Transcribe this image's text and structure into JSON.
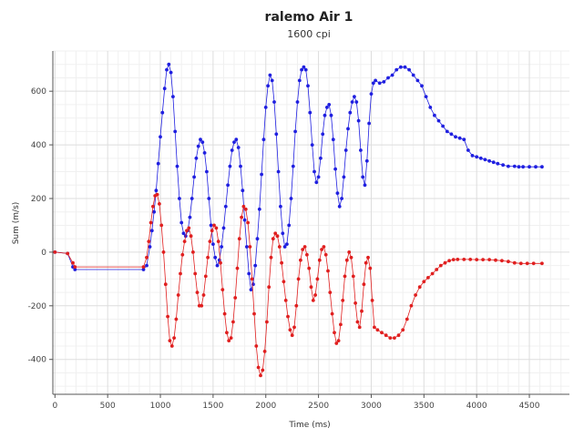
{
  "chart_data": {
    "type": "line",
    "title": "ralemo Air 1",
    "subtitle": "1600 cpi",
    "xlabel": "Time (ms)",
    "ylabel": "Sum (m/s)",
    "xlim": [
      -20,
      4880
    ],
    "ylim": [
      -530,
      750
    ],
    "xticks": [
      0,
      500,
      1000,
      1500,
      2000,
      2500,
      3000,
      3500,
      4000,
      4500
    ],
    "yticks": [
      -400,
      -200,
      0,
      200,
      400,
      600
    ],
    "grid": true,
    "legend": "none",
    "series": [
      {
        "color": "#1f1fe0",
        "points": [
          [
            0,
            0
          ],
          [
            120,
            -5
          ],
          [
            170,
            -55
          ],
          [
            190,
            -65
          ],
          [
            840,
            -65
          ],
          [
            870,
            -50
          ],
          [
            900,
            20
          ],
          [
            920,
            80
          ],
          [
            940,
            150
          ],
          [
            960,
            230
          ],
          [
            980,
            330
          ],
          [
            1000,
            430
          ],
          [
            1020,
            520
          ],
          [
            1040,
            610
          ],
          [
            1060,
            680
          ],
          [
            1080,
            700
          ],
          [
            1100,
            670
          ],
          [
            1120,
            580
          ],
          [
            1140,
            450
          ],
          [
            1160,
            320
          ],
          [
            1180,
            200
          ],
          [
            1200,
            110
          ],
          [
            1220,
            70
          ],
          [
            1240,
            60
          ],
          [
            1260,
            80
          ],
          [
            1280,
            130
          ],
          [
            1300,
            200
          ],
          [
            1320,
            280
          ],
          [
            1340,
            350
          ],
          [
            1360,
            395
          ],
          [
            1380,
            420
          ],
          [
            1400,
            410
          ],
          [
            1420,
            370
          ],
          [
            1440,
            300
          ],
          [
            1460,
            200
          ],
          [
            1480,
            100
          ],
          [
            1500,
            30
          ],
          [
            1520,
            -20
          ],
          [
            1540,
            -50
          ],
          [
            1560,
            -30
          ],
          [
            1580,
            20
          ],
          [
            1600,
            90
          ],
          [
            1620,
            170
          ],
          [
            1640,
            250
          ],
          [
            1660,
            320
          ],
          [
            1680,
            380
          ],
          [
            1700,
            410
          ],
          [
            1720,
            420
          ],
          [
            1740,
            390
          ],
          [
            1760,
            320
          ],
          [
            1780,
            230
          ],
          [
            1800,
            120
          ],
          [
            1820,
            20
          ],
          [
            1840,
            -80
          ],
          [
            1860,
            -140
          ],
          [
            1880,
            -120
          ],
          [
            1900,
            -50
          ],
          [
            1920,
            50
          ],
          [
            1940,
            160
          ],
          [
            1960,
            290
          ],
          [
            1980,
            420
          ],
          [
            2000,
            540
          ],
          [
            2020,
            620
          ],
          [
            2040,
            660
          ],
          [
            2060,
            640
          ],
          [
            2080,
            560
          ],
          [
            2100,
            440
          ],
          [
            2120,
            300
          ],
          [
            2140,
            170
          ],
          [
            2160,
            70
          ],
          [
            2180,
            20
          ],
          [
            2200,
            30
          ],
          [
            2220,
            100
          ],
          [
            2240,
            200
          ],
          [
            2260,
            320
          ],
          [
            2280,
            450
          ],
          [
            2300,
            560
          ],
          [
            2320,
            640
          ],
          [
            2340,
            680
          ],
          [
            2360,
            690
          ],
          [
            2380,
            680
          ],
          [
            2400,
            620
          ],
          [
            2420,
            520
          ],
          [
            2440,
            400
          ],
          [
            2460,
            300
          ],
          [
            2480,
            260
          ],
          [
            2500,
            280
          ],
          [
            2520,
            350
          ],
          [
            2540,
            440
          ],
          [
            2560,
            510
          ],
          [
            2580,
            540
          ],
          [
            2600,
            550
          ],
          [
            2620,
            510
          ],
          [
            2640,
            420
          ],
          [
            2660,
            310
          ],
          [
            2680,
            220
          ],
          [
            2700,
            170
          ],
          [
            2720,
            200
          ],
          [
            2740,
            280
          ],
          [
            2760,
            380
          ],
          [
            2780,
            460
          ],
          [
            2800,
            520
          ],
          [
            2820,
            560
          ],
          [
            2840,
            580
          ],
          [
            2860,
            560
          ],
          [
            2880,
            490
          ],
          [
            2900,
            380
          ],
          [
            2920,
            280
          ],
          [
            2940,
            250
          ],
          [
            2960,
            340
          ],
          [
            2980,
            480
          ],
          [
            3000,
            590
          ],
          [
            3020,
            630
          ],
          [
            3040,
            640
          ],
          [
            3080,
            630
          ],
          [
            3120,
            635
          ],
          [
            3160,
            650
          ],
          [
            3200,
            660
          ],
          [
            3240,
            680
          ],
          [
            3280,
            690
          ],
          [
            3320,
            690
          ],
          [
            3360,
            680
          ],
          [
            3400,
            660
          ],
          [
            3440,
            640
          ],
          [
            3480,
            620
          ],
          [
            3520,
            580
          ],
          [
            3560,
            540
          ],
          [
            3600,
            510
          ],
          [
            3640,
            490
          ],
          [
            3680,
            470
          ],
          [
            3720,
            450
          ],
          [
            3760,
            440
          ],
          [
            3800,
            430
          ],
          [
            3840,
            425
          ],
          [
            3880,
            420
          ],
          [
            3920,
            380
          ],
          [
            3960,
            360
          ],
          [
            4000,
            355
          ],
          [
            4040,
            350
          ],
          [
            4080,
            345
          ],
          [
            4120,
            340
          ],
          [
            4160,
            335
          ],
          [
            4200,
            330
          ],
          [
            4250,
            325
          ],
          [
            4300,
            320
          ],
          [
            4360,
            320
          ],
          [
            4400,
            318
          ],
          [
            4440,
            318
          ],
          [
            4500,
            318
          ],
          [
            4560,
            318
          ],
          [
            4620,
            318
          ]
        ]
      },
      {
        "color": "#e01f1f",
        "points": [
          [
            0,
            0
          ],
          [
            120,
            -5
          ],
          [
            170,
            -40
          ],
          [
            190,
            -55
          ],
          [
            840,
            -55
          ],
          [
            870,
            -20
          ],
          [
            890,
            40
          ],
          [
            910,
            110
          ],
          [
            930,
            170
          ],
          [
            950,
            210
          ],
          [
            970,
            215
          ],
          [
            990,
            180
          ],
          [
            1010,
            100
          ],
          [
            1030,
            0
          ],
          [
            1050,
            -120
          ],
          [
            1070,
            -240
          ],
          [
            1090,
            -330
          ],
          [
            1110,
            -350
          ],
          [
            1130,
            -320
          ],
          [
            1150,
            -250
          ],
          [
            1170,
            -160
          ],
          [
            1190,
            -80
          ],
          [
            1210,
            -10
          ],
          [
            1230,
            40
          ],
          [
            1250,
            80
          ],
          [
            1270,
            90
          ],
          [
            1290,
            60
          ],
          [
            1310,
            0
          ],
          [
            1330,
            -80
          ],
          [
            1350,
            -150
          ],
          [
            1370,
            -200
          ],
          [
            1390,
            -200
          ],
          [
            1410,
            -160
          ],
          [
            1430,
            -90
          ],
          [
            1450,
            -20
          ],
          [
            1470,
            40
          ],
          [
            1490,
            80
          ],
          [
            1510,
            100
          ],
          [
            1530,
            90
          ],
          [
            1550,
            40
          ],
          [
            1570,
            -40
          ],
          [
            1590,
            -140
          ],
          [
            1610,
            -230
          ],
          [
            1630,
            -300
          ],
          [
            1650,
            -330
          ],
          [
            1670,
            -320
          ],
          [
            1690,
            -260
          ],
          [
            1710,
            -170
          ],
          [
            1730,
            -60
          ],
          [
            1750,
            50
          ],
          [
            1770,
            130
          ],
          [
            1790,
            170
          ],
          [
            1810,
            160
          ],
          [
            1830,
            110
          ],
          [
            1850,
            20
          ],
          [
            1870,
            -100
          ],
          [
            1890,
            -230
          ],
          [
            1910,
            -350
          ],
          [
            1930,
            -430
          ],
          [
            1950,
            -460
          ],
          [
            1970,
            -440
          ],
          [
            1990,
            -370
          ],
          [
            2010,
            -260
          ],
          [
            2030,
            -130
          ],
          [
            2050,
            -20
          ],
          [
            2070,
            50
          ],
          [
            2090,
            70
          ],
          [
            2110,
            60
          ],
          [
            2130,
            20
          ],
          [
            2150,
            -40
          ],
          [
            2170,
            -110
          ],
          [
            2190,
            -180
          ],
          [
            2210,
            -240
          ],
          [
            2230,
            -290
          ],
          [
            2250,
            -310
          ],
          [
            2270,
            -280
          ],
          [
            2290,
            -200
          ],
          [
            2310,
            -100
          ],
          [
            2330,
            -30
          ],
          [
            2350,
            10
          ],
          [
            2370,
            20
          ],
          [
            2390,
            -10
          ],
          [
            2410,
            -60
          ],
          [
            2430,
            -130
          ],
          [
            2450,
            -180
          ],
          [
            2470,
            -160
          ],
          [
            2490,
            -100
          ],
          [
            2510,
            -30
          ],
          [
            2530,
            10
          ],
          [
            2550,
            20
          ],
          [
            2570,
            -10
          ],
          [
            2590,
            -70
          ],
          [
            2610,
            -150
          ],
          [
            2630,
            -230
          ],
          [
            2650,
            -300
          ],
          [
            2670,
            -340
          ],
          [
            2690,
            -330
          ],
          [
            2710,
            -270
          ],
          [
            2730,
            -180
          ],
          [
            2750,
            -90
          ],
          [
            2770,
            -30
          ],
          [
            2790,
            0
          ],
          [
            2810,
            -20
          ],
          [
            2830,
            -90
          ],
          [
            2850,
            -190
          ],
          [
            2870,
            -260
          ],
          [
            2890,
            -280
          ],
          [
            2910,
            -220
          ],
          [
            2930,
            -120
          ],
          [
            2950,
            -40
          ],
          [
            2970,
            -20
          ],
          [
            2990,
            -60
          ],
          [
            3010,
            -180
          ],
          [
            3030,
            -280
          ],
          [
            3060,
            -290
          ],
          [
            3100,
            -300
          ],
          [
            3140,
            -310
          ],
          [
            3180,
            -320
          ],
          [
            3220,
            -320
          ],
          [
            3260,
            -310
          ],
          [
            3300,
            -290
          ],
          [
            3340,
            -250
          ],
          [
            3380,
            -200
          ],
          [
            3420,
            -160
          ],
          [
            3460,
            -130
          ],
          [
            3500,
            -110
          ],
          [
            3540,
            -95
          ],
          [
            3580,
            -80
          ],
          [
            3620,
            -65
          ],
          [
            3660,
            -50
          ],
          [
            3700,
            -40
          ],
          [
            3740,
            -32
          ],
          [
            3780,
            -28
          ],
          [
            3820,
            -27
          ],
          [
            3880,
            -27
          ],
          [
            3940,
            -27
          ],
          [
            4000,
            -28
          ],
          [
            4060,
            -28
          ],
          [
            4120,
            -28
          ],
          [
            4180,
            -30
          ],
          [
            4240,
            -32
          ],
          [
            4300,
            -35
          ],
          [
            4360,
            -40
          ],
          [
            4420,
            -42
          ],
          [
            4480,
            -42
          ],
          [
            4540,
            -42
          ],
          [
            4620,
            -42
          ]
        ]
      }
    ]
  }
}
